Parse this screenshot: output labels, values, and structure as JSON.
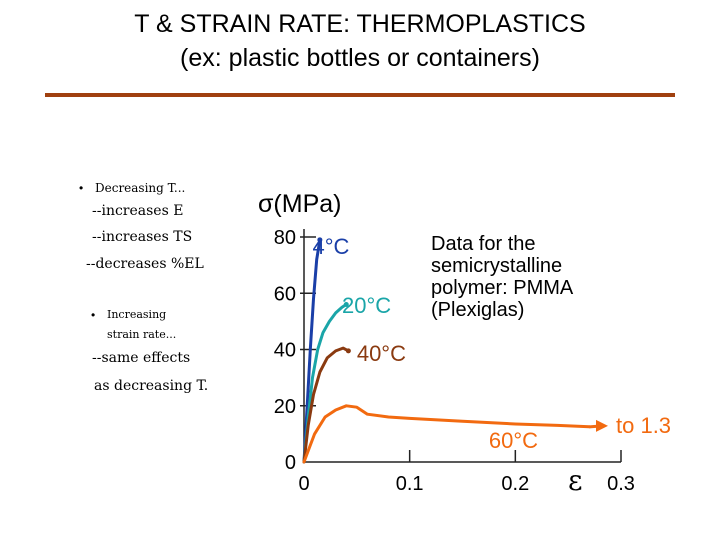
{
  "slide": {
    "title_line1": "T & STRAIN RATE:  THERMOPLASTICS",
    "title_line2": "(ex: plastic bottles or containers)",
    "rule_color": "#a0400f"
  },
  "bullets": {
    "b1_head": "Decreasing T...",
    "b1_sub1": "--increases E",
    "b1_sub2": "--increases TS",
    "b1_sub3": "--decreases %EL",
    "b2_head1": "Increasing",
    "b2_head2": "strain rate...",
    "b2_sub1": "--same effects",
    "b2_sub2": "as decreasing T."
  },
  "chart_data": {
    "type": "line",
    "ylabel": "σ(MPa)",
    "xlabel": "ε",
    "xlim": [
      0,
      0.3
    ],
    "ylim": [
      0,
      80
    ],
    "xticks": [
      0,
      0.1,
      0.2,
      0.3
    ],
    "xtick_labels": [
      "0",
      "0.1",
      "0.2",
      "0.3"
    ],
    "yticks": [
      0,
      20,
      40,
      60,
      80
    ],
    "ytick_labels": [
      "0",
      "20",
      "40",
      "60",
      "80"
    ],
    "annotation": [
      "Data for the",
      "semicrystalline",
      "polymer: PMMA",
      "(Plexiglas)"
    ],
    "continuation_label": "to 1.3",
    "continuation_color": "#f26a10",
    "series": [
      {
        "name": "4°C",
        "color": "#1a3fa8",
        "x": [
          0,
          0.003,
          0.006,
          0.009,
          0.012,
          0.015
        ],
        "y": [
          0,
          20,
          40,
          58,
          72,
          79
        ]
      },
      {
        "name": "20°C",
        "color": "#1aa5a8",
        "x": [
          0,
          0.004,
          0.008,
          0.013,
          0.018,
          0.024,
          0.03,
          0.036,
          0.04
        ],
        "y": [
          0,
          16,
          30,
          40,
          46,
          50,
          53,
          55,
          56
        ]
      },
      {
        "name": "40°C",
        "color": "#8a3a10",
        "x": [
          0,
          0.004,
          0.009,
          0.015,
          0.022,
          0.03,
          0.037,
          0.042
        ],
        "y": [
          0,
          13,
          24,
          32,
          37,
          39.5,
          40.5,
          39.5
        ]
      },
      {
        "name": "60°C",
        "color": "#f26a10",
        "x": [
          0,
          0.005,
          0.01,
          0.02,
          0.03,
          0.04,
          0.05,
          0.06,
          0.08,
          0.1,
          0.15,
          0.2,
          0.24,
          0.27
        ],
        "y": [
          0,
          5,
          10,
          16,
          18.5,
          20,
          19.5,
          17,
          16,
          15.5,
          14.5,
          13.5,
          13,
          12.5
        ]
      }
    ],
    "series_labels": [
      {
        "text": "4°C",
        "color": "#1a3fa8",
        "x": 0.008,
        "y": 74
      },
      {
        "text": "20°C",
        "color": "#1aa5a8",
        "x": 0.036,
        "y": 53
      },
      {
        "text": "40°C",
        "color": "#8a3a10",
        "x": 0.05,
        "y": 36
      },
      {
        "text": "60°C",
        "color": "#f26a10",
        "x": 0.175,
        "y": 5
      }
    ]
  }
}
